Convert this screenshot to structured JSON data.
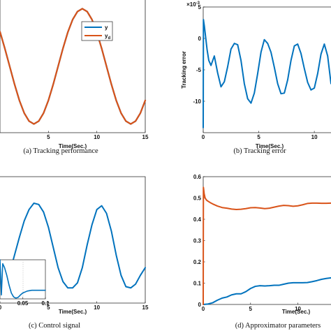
{
  "chart_data": [
    {
      "id": "a",
      "type": "line",
      "caption": "(a) Tracking performance",
      "xlabel": "Time(Sec.)",
      "ylabel": "",
      "xlim": [
        0,
        15
      ],
      "ylim": [
        -1.15,
        1.15
      ],
      "xticks": [
        5,
        10,
        15
      ],
      "xtick_labels": [
        "5",
        "10",
        "15"
      ],
      "grid": false,
      "legend": {
        "placement": "top-right",
        "entries": [
          "y",
          "y"
        ],
        "subscripts": [
          "",
          "d"
        ]
      },
      "series": [
        {
          "name": "y",
          "color": "#0072BD",
          "x": [
            0,
            0.5,
            1,
            1.5,
            2,
            2.5,
            3,
            3.5,
            4,
            4.5,
            5,
            5.5,
            6,
            6.5,
            7,
            7.5,
            8,
            8.5,
            9,
            9.5,
            10,
            10.5,
            11,
            11.5,
            12,
            12.5,
            13,
            13.5,
            14,
            14.5,
            15
          ],
          "y": [
            0.6,
            0.31,
            0.0,
            -0.31,
            -0.59,
            -0.81,
            -0.95,
            -1.0,
            -0.95,
            -0.81,
            -0.59,
            -0.31,
            0.0,
            0.31,
            0.59,
            0.81,
            0.95,
            1.0,
            0.95,
            0.81,
            0.59,
            0.31,
            0.0,
            -0.31,
            -0.59,
            -0.81,
            -0.95,
            -1.0,
            -0.95,
            -0.81,
            -0.59
          ]
        },
        {
          "name": "y_d",
          "color": "#D95319",
          "x": [
            0,
            0.5,
            1,
            1.5,
            2,
            2.5,
            3,
            3.5,
            4,
            4.5,
            5,
            5.5,
            6,
            6.5,
            7,
            7.5,
            8,
            8.5,
            9,
            9.5,
            10,
            10.5,
            11,
            11.5,
            12,
            12.5,
            13,
            13.5,
            14,
            14.5,
            15
          ],
          "y": [
            0.6,
            0.31,
            0.0,
            -0.31,
            -0.59,
            -0.81,
            -0.95,
            -1.0,
            -0.95,
            -0.81,
            -0.59,
            -0.31,
            0.0,
            0.31,
            0.59,
            0.81,
            0.95,
            1.0,
            0.95,
            0.81,
            0.59,
            0.31,
            0.0,
            -0.31,
            -0.59,
            -0.81,
            -0.95,
            -1.0,
            -0.95,
            -0.81,
            -0.59
          ]
        }
      ]
    },
    {
      "id": "b",
      "type": "line",
      "caption": "(b) Tracking error",
      "xlabel": "Time(Sec.)",
      "ylabel": "Tracking error",
      "scale_label": "× 10⁻³",
      "scale_label_parts": [
        "×10",
        "-3"
      ],
      "xlim": [
        0,
        11.5
      ],
      "ylim": [
        -15,
        5
      ],
      "xticks": [
        0,
        5,
        10
      ],
      "xtick_labels": [
        "0",
        "5",
        "10"
      ],
      "yticks": [
        5,
        0,
        -5,
        -10
      ],
      "ytick_labels": [
        "5",
        "0",
        "-5",
        "-10"
      ],
      "grid": false,
      "series": [
        {
          "name": "",
          "color": "#0072BD",
          "x": [
            0,
            0.02,
            0.05,
            0.1,
            0.2,
            0.35,
            0.5,
            0.7,
            1.0,
            1.3,
            1.6,
            1.9,
            2.2,
            2.5,
            2.8,
            3.1,
            3.4,
            3.7,
            4.0,
            4.3,
            4.6,
            4.9,
            5.2,
            5.5,
            5.8,
            6.1,
            6.4,
            6.7,
            7.0,
            7.3,
            7.6,
            7.9,
            8.2,
            8.5,
            8.8,
            9.1,
            9.4,
            9.7,
            10.0,
            10.3,
            10.6,
            10.9,
            11.2,
            11.5
          ],
          "y": [
            -14.2,
            3.0,
            2.6,
            2.0,
            0.5,
            -1.8,
            -3.5,
            -4.3,
            -2.8,
            -5.5,
            -7.7,
            -6.9,
            -4.5,
            -1.7,
            -0.8,
            -1.0,
            -3.5,
            -7.2,
            -9.6,
            -10.3,
            -8.7,
            -5.6,
            -2.2,
            -0.2,
            -0.8,
            -2.2,
            -4.6,
            -7.2,
            -8.8,
            -8.7,
            -6.6,
            -3.5,
            -1.2,
            -0.9,
            -2.4,
            -4.8,
            -7.0,
            -8.2,
            -7.9,
            -5.6,
            -2.5,
            -0.9,
            -2.8,
            -7.2
          ]
        }
      ]
    },
    {
      "id": "c",
      "type": "line",
      "caption": "(c) Control signal",
      "xlabel": "Time(Sec.)",
      "ylabel": "",
      "xlim": [
        0,
        15
      ],
      "ylim": [
        0,
        1
      ],
      "xticks": [
        0,
        5,
        10,
        15
      ],
      "xtick_labels": [
        "0",
        "5",
        "10",
        "15"
      ],
      "grid": false,
      "series": [
        {
          "name": "",
          "color": "#0072BD",
          "x": [
            0,
            0.5,
            1,
            1.5,
            2,
            2.5,
            3,
            3.5,
            4,
            4.5,
            5,
            5.5,
            6,
            6.5,
            7,
            7.5,
            8,
            8.5,
            9,
            9.5,
            10,
            10.5,
            11,
            11.5,
            12,
            12.5,
            13,
            13.5,
            14,
            14.5,
            15
          ],
          "y": [
            0.13,
            0.16,
            0.24,
            0.38,
            0.52,
            0.65,
            0.74,
            0.79,
            0.78,
            0.72,
            0.6,
            0.44,
            0.28,
            0.17,
            0.12,
            0.12,
            0.16,
            0.28,
            0.46,
            0.62,
            0.74,
            0.77,
            0.71,
            0.57,
            0.38,
            0.22,
            0.13,
            0.12,
            0.15,
            0.22,
            0.28
          ]
        }
      ],
      "inset": {
        "xlim": [
          0,
          0.1
        ],
        "xticks": [
          0.05,
          0.1
        ],
        "xtick_labels": [
          "0.05",
          "0.1"
        ],
        "ylim": [
          0,
          1
        ],
        "series": [
          {
            "name": "",
            "color": "#0072BD",
            "x": [
              0,
              0.003,
              0.006,
              0.01,
              0.015,
              0.02,
              0.025,
              0.03,
              0.035,
              0.04,
              0.045,
              0.05,
              0.06,
              0.07,
              0.08,
              0.09,
              0.1
            ],
            "y": [
              1.0,
              0.1,
              0.9,
              0.8,
              0.6,
              0.35,
              0.15,
              0.05,
              0.02,
              0.04,
              0.1,
              0.15,
              0.2,
              0.22,
              0.22,
              0.22,
              0.22
            ]
          }
        ]
      }
    },
    {
      "id": "d",
      "type": "line",
      "caption": "(d) Approximator parameters",
      "xlabel": "Time(Sec.)",
      "ylabel": "",
      "xlim": [
        0,
        13.5
      ],
      "ylim": [
        0,
        0.6
      ],
      "xticks": [
        0,
        5,
        10
      ],
      "xtick_labels": [
        "0",
        "5",
        "10"
      ],
      "yticks": [
        0,
        0.1,
        0.2,
        0.3,
        0.4,
        0.5,
        0.6
      ],
      "ytick_labels": [
        "0",
        "0.1",
        "0.2",
        "0.3",
        "0.4",
        "0.5",
        "0.6"
      ],
      "grid": false,
      "series": [
        {
          "name": "",
          "color": "#0072BD",
          "x": [
            0,
            0.5,
            1,
            1.5,
            2,
            2.5,
            3,
            3.5,
            4,
            4.5,
            5,
            5.5,
            6,
            6.5,
            7,
            7.5,
            8,
            8.5,
            9,
            9.5,
            10,
            10.5,
            11,
            11.5,
            12,
            12.5,
            13,
            13.5
          ],
          "y": [
            0,
            0.002,
            0.008,
            0.02,
            0.03,
            0.035,
            0.045,
            0.05,
            0.05,
            0.06,
            0.075,
            0.085,
            0.088,
            0.087,
            0.088,
            0.09,
            0.09,
            0.095,
            0.1,
            0.102,
            0.102,
            0.102,
            0.103,
            0.107,
            0.112,
            0.118,
            0.122,
            0.125
          ]
        },
        {
          "name": "",
          "color": "#D95319",
          "x": [
            0,
            0.02,
            0.05,
            0.1,
            0.2,
            0.35,
            0.5,
            0.75,
            1,
            1.5,
            2,
            2.5,
            3,
            3.5,
            4,
            4.5,
            5,
            5.5,
            6,
            6.5,
            7,
            7.5,
            8,
            8.5,
            9,
            9.5,
            10,
            10.5,
            11,
            11.5,
            12,
            12.5,
            13,
            13.5
          ],
          "y": [
            0,
            0.55,
            0.54,
            0.52,
            0.5,
            0.49,
            0.485,
            0.478,
            0.472,
            0.462,
            0.455,
            0.452,
            0.448,
            0.446,
            0.447,
            0.45,
            0.454,
            0.455,
            0.453,
            0.45,
            0.452,
            0.457,
            0.462,
            0.465,
            0.464,
            0.461,
            0.463,
            0.468,
            0.474,
            0.476,
            0.476,
            0.475,
            0.475,
            0.476
          ]
        }
      ]
    }
  ]
}
